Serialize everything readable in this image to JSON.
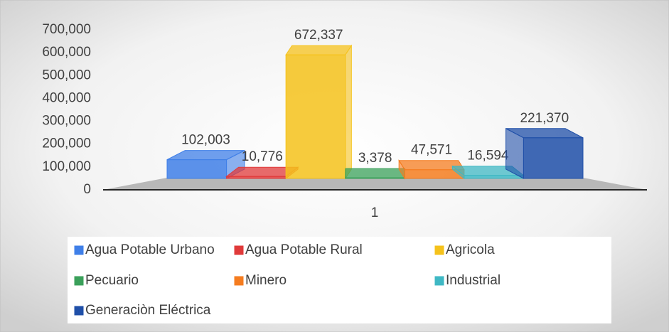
{
  "chart_data": {
    "type": "bar",
    "categories": [
      "1"
    ],
    "series": [
      {
        "name": "Agua Potable Urbano",
        "color": "#3f7fe8",
        "values": [
          102003
        ],
        "value_labels": [
          "102,003"
        ]
      },
      {
        "name": "Agua Potable Rural",
        "color": "#e03a3a",
        "values": [
          10776
        ],
        "value_labels": [
          "10,776"
        ]
      },
      {
        "name": "Agricola",
        "color": "#f5c21b",
        "values": [
          672337
        ],
        "value_labels": [
          "672,337"
        ]
      },
      {
        "name": "Pecuario",
        "color": "#3aa05a",
        "values": [
          3378
        ],
        "value_labels": [
          "3,378"
        ]
      },
      {
        "name": "Minero",
        "color": "#f57c1f",
        "values": [
          47571
        ],
        "value_labels": [
          "47,571"
        ]
      },
      {
        "name": "Industrial",
        "color": "#3fb8c4",
        "values": [
          16594
        ],
        "value_labels": [
          "16,594"
        ]
      },
      {
        "name": "Generaciòn Eléctrica",
        "color": "#1f4fa8",
        "values": [
          221370
        ],
        "value_labels": [
          "221,370"
        ]
      }
    ],
    "ylim": [
      0,
      700000
    ],
    "yticks": [
      0,
      {
        "value": 100000,
        "label": "100,000"
      },
      {
        "value": 200000,
        "label": "200,000"
      },
      {
        "value": 300000,
        "label": "300,000"
      },
      {
        "value": 400000,
        "label": "400,000"
      },
      {
        "value": 500000,
        "label": "500,000"
      },
      {
        "value": 600000,
        "label": "600,000"
      },
      {
        "value": 700000,
        "label": "700,000"
      }
    ],
    "legend": "bottom"
  }
}
